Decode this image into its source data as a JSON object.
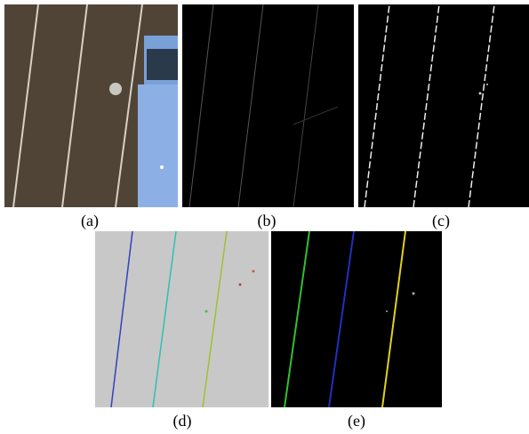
{
  "captions": {
    "a": "(a)",
    "b": "(b)",
    "c": "(c)",
    "d": "(d)",
    "e": "(e)"
  }
}
